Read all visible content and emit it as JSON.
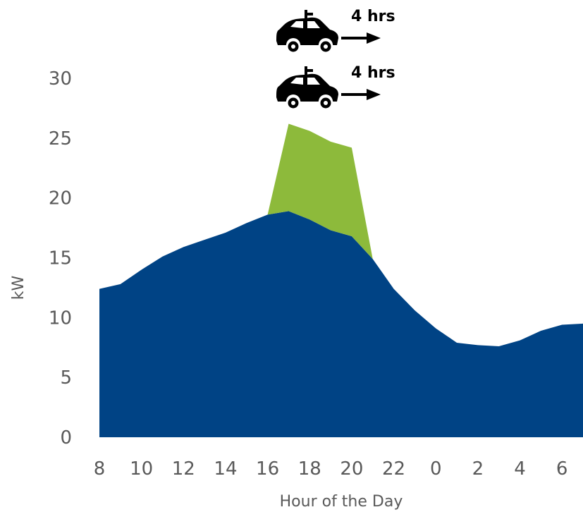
{
  "chart_data": {
    "type": "area",
    "xlabel": "Hour of the Day",
    "ylabel": "kW",
    "ylim": [
      0,
      30
    ],
    "y_ticks": [
      0,
      5,
      10,
      15,
      20,
      25,
      30
    ],
    "x_tick_labels": [
      "8",
      "10",
      "12",
      "14",
      "16",
      "18",
      "20",
      "22",
      "0",
      "2",
      "4",
      "6"
    ],
    "grid": false,
    "x": [
      "8",
      "9",
      "10",
      "11",
      "12",
      "13",
      "14",
      "15",
      "16",
      "17",
      "18",
      "19",
      "20",
      "21",
      "22",
      "23",
      "0",
      "1",
      "2",
      "3",
      "4",
      "5",
      "6",
      "7"
    ],
    "series": [
      {
        "color": "#004385",
        "values": [
          12.4,
          12.8,
          14.0,
          15.1,
          15.9,
          16.5,
          17.1,
          17.9,
          18.6,
          18.9,
          18.2,
          17.3,
          16.8,
          14.9,
          12.4,
          10.6,
          9.1,
          7.9,
          7.7,
          7.6,
          8.1,
          8.9,
          9.4,
          9.5
        ]
      },
      {
        "color": "#8DBA3B",
        "values": [
          0,
          0,
          0,
          0,
          0,
          0,
          0,
          0,
          0,
          7.3,
          7.4,
          7.4,
          7.4,
          0,
          0,
          0,
          0,
          0,
          0,
          0,
          0,
          0,
          0,
          0
        ]
      }
    ],
    "annotations": [
      {
        "text": "4 hrs",
        "icon": "electric-car-icon"
      },
      {
        "text": "4 hrs",
        "icon": "electric-car-icon"
      }
    ]
  }
}
